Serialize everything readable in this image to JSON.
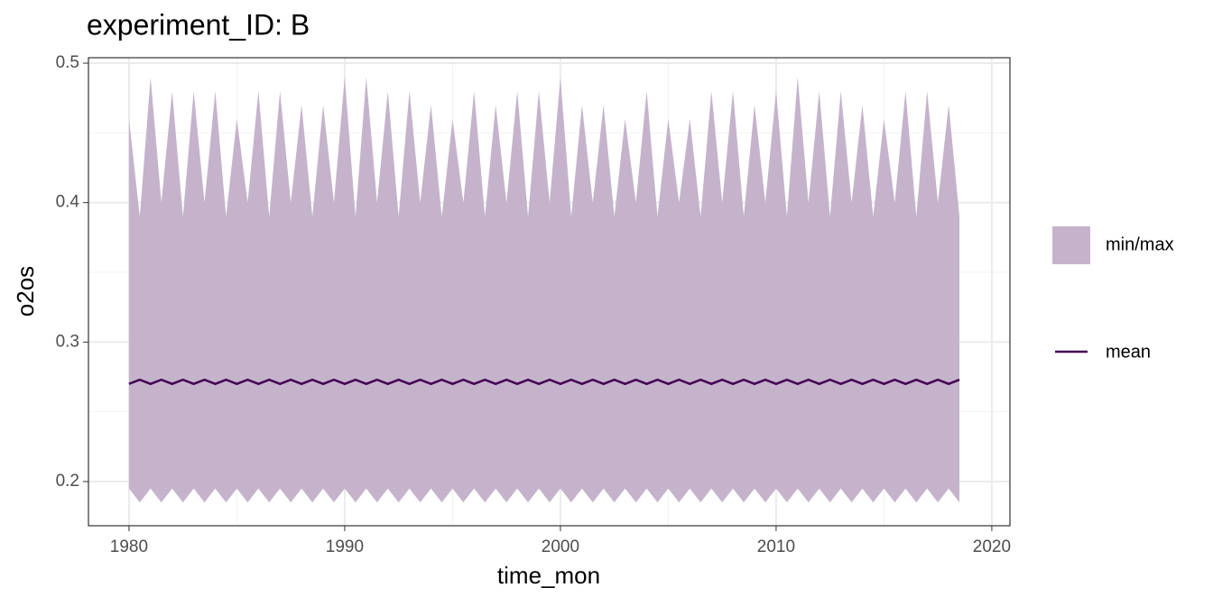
{
  "chart_data": {
    "type": "ribbon-line",
    "title": "experiment_ID: B",
    "x_label": "time_mon",
    "y_label": "o2os",
    "x": [
      1980,
      1980.5,
      1981,
      1981.5,
      1982,
      1982.5,
      1983,
      1983.5,
      1984,
      1984.5,
      1985,
      1985.5,
      1986,
      1986.5,
      1987,
      1987.5,
      1988,
      1988.5,
      1989,
      1989.5,
      1990,
      1990.5,
      1991,
      1991.5,
      1992,
      1992.5,
      1993,
      1993.5,
      1994,
      1994.5,
      1995,
      1995.5,
      1996,
      1996.5,
      1997,
      1997.5,
      1998,
      1998.5,
      1999,
      1999.5,
      2000,
      2000.5,
      2001,
      2001.5,
      2002,
      2002.5,
      2003,
      2003.5,
      2004,
      2004.5,
      2005,
      2005.5,
      2006,
      2006.5,
      2007,
      2007.5,
      2008,
      2008.5,
      2009,
      2009.5,
      2010,
      2010.5,
      2011,
      2011.5,
      2012,
      2012.5,
      2013,
      2013.5,
      2014,
      2014.5,
      2015,
      2015.5,
      2016,
      2016.5,
      2017,
      2017.5,
      2018,
      2018.5
    ],
    "series": [
      {
        "name": "min/max",
        "color": "#c5b3cc",
        "upper": [
          0.46,
          0.39,
          0.49,
          0.4,
          0.48,
          0.39,
          0.48,
          0.4,
          0.48,
          0.39,
          0.46,
          0.4,
          0.48,
          0.39,
          0.48,
          0.4,
          0.47,
          0.39,
          0.47,
          0.4,
          0.49,
          0.39,
          0.49,
          0.4,
          0.48,
          0.39,
          0.48,
          0.4,
          0.47,
          0.39,
          0.46,
          0.4,
          0.48,
          0.39,
          0.47,
          0.4,
          0.48,
          0.39,
          0.48,
          0.4,
          0.49,
          0.39,
          0.47,
          0.4,
          0.47,
          0.39,
          0.46,
          0.4,
          0.48,
          0.39,
          0.46,
          0.4,
          0.46,
          0.39,
          0.48,
          0.4,
          0.48,
          0.39,
          0.47,
          0.4,
          0.48,
          0.39,
          0.49,
          0.4,
          0.48,
          0.39,
          0.48,
          0.4,
          0.47,
          0.39,
          0.46,
          0.4,
          0.48,
          0.39,
          0.48,
          0.4,
          0.47,
          0.39
        ],
        "lower": [
          0.195,
          0.185,
          0.195,
          0.185,
          0.195,
          0.185,
          0.195,
          0.185,
          0.195,
          0.185,
          0.195,
          0.185,
          0.195,
          0.185,
          0.195,
          0.185,
          0.195,
          0.185,
          0.195,
          0.185,
          0.195,
          0.185,
          0.195,
          0.185,
          0.195,
          0.185,
          0.195,
          0.185,
          0.195,
          0.185,
          0.195,
          0.185,
          0.195,
          0.185,
          0.195,
          0.185,
          0.195,
          0.185,
          0.195,
          0.185,
          0.195,
          0.185,
          0.195,
          0.185,
          0.195,
          0.185,
          0.195,
          0.185,
          0.195,
          0.185,
          0.195,
          0.185,
          0.195,
          0.185,
          0.195,
          0.185,
          0.195,
          0.185,
          0.195,
          0.185,
          0.195,
          0.185,
          0.195,
          0.185,
          0.195,
          0.185,
          0.195,
          0.185,
          0.195,
          0.185,
          0.195,
          0.185,
          0.195,
          0.185,
          0.195,
          0.185,
          0.195,
          0.185
        ]
      },
      {
        "name": "mean",
        "color": "#440154",
        "values": [
          0.27,
          0.273,
          0.27,
          0.273,
          0.27,
          0.273,
          0.27,
          0.273,
          0.27,
          0.273,
          0.27,
          0.273,
          0.27,
          0.273,
          0.27,
          0.273,
          0.27,
          0.273,
          0.27,
          0.273,
          0.27,
          0.273,
          0.27,
          0.273,
          0.27,
          0.273,
          0.27,
          0.273,
          0.27,
          0.273,
          0.27,
          0.273,
          0.27,
          0.273,
          0.27,
          0.273,
          0.27,
          0.273,
          0.27,
          0.273,
          0.27,
          0.273,
          0.27,
          0.273,
          0.27,
          0.273,
          0.27,
          0.273,
          0.27,
          0.273,
          0.27,
          0.273,
          0.27,
          0.273,
          0.27,
          0.273,
          0.27,
          0.273,
          0.27,
          0.273,
          0.27,
          0.273,
          0.27,
          0.273,
          0.27,
          0.273,
          0.27,
          0.273,
          0.27,
          0.273,
          0.27,
          0.273,
          0.27,
          0.273,
          0.27,
          0.273,
          0.27,
          0.273
        ]
      }
    ],
    "xlim": [
      1978.12,
      2020.84
    ],
    "xticks": [
      1980,
      1990,
      2000,
      2010,
      2020
    ],
    "ylim": [
      0.1683,
      0.5039
    ],
    "yticks": [
      0.2,
      0.3,
      0.4,
      0.5
    ],
    "grid": true
  }
}
